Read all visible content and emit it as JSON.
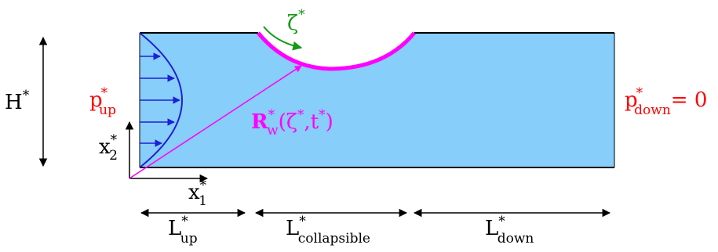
{
  "labels": {
    "height": {
      "text": "H",
      "sup": "*"
    },
    "p_up": {
      "text": "p",
      "sup": "*",
      "sub": "up"
    },
    "p_down": {
      "text": "p",
      "sup": "*",
      "sub": "down",
      "tail": "= 0"
    },
    "x2": {
      "text": "x",
      "sup": "*",
      "sub": "2"
    },
    "x1": {
      "text": "x",
      "sup": "*",
      "sub": "1"
    },
    "zeta": {
      "text": "ζ",
      "sup": "*"
    },
    "wall_position": {
      "text": "R",
      "sup": "*",
      "sub": "w",
      "args": "(ζ",
      "args_sup": "*",
      "args_mid": ",t",
      "args_sup2": "*",
      "args_end": ")"
    },
    "L_up": {
      "text": "L",
      "sup": "*",
      "sub": "up"
    },
    "L_collapsible": {
      "text": "L",
      "sup": "*",
      "sub": "collapsible"
    },
    "L_down": {
      "text": "L",
      "sup": "*",
      "sub": "down"
    }
  },
  "colors": {
    "fluid": "#87cefa",
    "wall": "#000000",
    "velocity": "#1f1fd6",
    "collapsible_wall": "#ff00ff",
    "position_vector": "#ff00ff",
    "pressure_text": "#ff0000",
    "zeta_arrow": "#159a15",
    "text": "#000000"
  }
}
